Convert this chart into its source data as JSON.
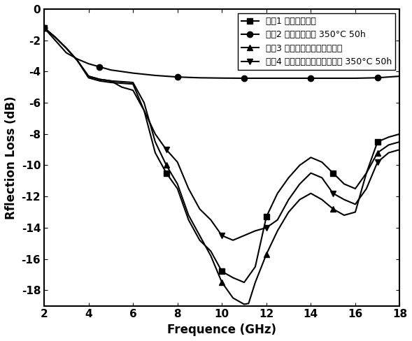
{
  "title": "",
  "xlabel": "Frequence (GHz)",
  "ylabel": "Rflection Loss (dB)",
  "xlim": [
    2,
    18
  ],
  "ylim": [
    -19,
    0
  ],
  "xticks": [
    2,
    4,
    6,
    8,
    10,
    12,
    14,
    16,
    18
  ],
  "yticks": [
    0,
    -2,
    -4,
    -6,
    -8,
    -10,
    -12,
    -14,
    -16,
    -18
  ],
  "legend_labels": [
    "试朷1 罰基铁粉涂层",
    "试朷2 罰基铁粉涂层 350°C 50h",
    "试朷3 氧化铝包覆罰基铁粉涂层",
    "试朷4 氧化铝包覆罰基铁粉涂层 350°C 50h"
  ],
  "series1_x": [
    2,
    2.5,
    3,
    3.5,
    4,
    4.5,
    5,
    5.5,
    6,
    6.5,
    7,
    7.5,
    8,
    8.5,
    9,
    9.5,
    10,
    10.5,
    11,
    11.5,
    12,
    12.5,
    13,
    13.5,
    14,
    14.5,
    15,
    15.5,
    16,
    16.5,
    17,
    17.5,
    18
  ],
  "series1_y": [
    -1.2,
    -1.8,
    -2.5,
    -3.3,
    -4.4,
    -4.6,
    -4.7,
    -4.75,
    -4.8,
    -6.5,
    -9.2,
    -10.5,
    -11.5,
    -13.5,
    -14.8,
    -15.5,
    -16.8,
    -17.2,
    -17.5,
    -16.5,
    -13.3,
    -11.8,
    -10.8,
    -10.0,
    -9.5,
    -9.8,
    -10.5,
    -11.2,
    -11.5,
    -10.5,
    -8.5,
    -8.2,
    -8.0
  ],
  "series2_x": [
    2,
    2.5,
    3,
    3.5,
    4,
    4.5,
    5,
    6,
    7,
    8,
    9,
    10,
    11,
    12,
    13,
    14,
    15,
    16,
    17,
    18
  ],
  "series2_y": [
    -1.2,
    -2.0,
    -2.8,
    -3.2,
    -3.5,
    -3.7,
    -3.9,
    -4.1,
    -4.25,
    -4.35,
    -4.4,
    -4.42,
    -4.43,
    -4.43,
    -4.43,
    -4.43,
    -4.43,
    -4.43,
    -4.4,
    -4.3
  ],
  "series3_x": [
    2,
    2.5,
    3,
    3.5,
    4,
    4.5,
    5,
    5.5,
    6,
    6.5,
    7,
    7.5,
    8,
    8.5,
    9,
    9.5,
    10,
    10.5,
    11,
    11.2,
    11.5,
    12,
    12.5,
    13,
    13.5,
    14,
    14.5,
    15,
    15.5,
    16,
    16.5,
    17,
    17.5,
    18
  ],
  "series3_y": [
    -1.2,
    -1.8,
    -2.5,
    -3.3,
    -4.3,
    -4.5,
    -4.6,
    -4.65,
    -4.7,
    -6.0,
    -8.5,
    -10.0,
    -11.2,
    -13.2,
    -14.5,
    -15.8,
    -17.5,
    -18.5,
    -18.9,
    -18.85,
    -17.5,
    -15.7,
    -14.2,
    -13.0,
    -12.2,
    -11.8,
    -12.2,
    -12.8,
    -13.2,
    -13.0,
    -10.5,
    -9.2,
    -8.7,
    -8.5
  ],
  "series4_x": [
    2,
    2.5,
    3,
    3.5,
    4,
    4.5,
    5,
    5.5,
    6,
    6.5,
    7,
    7.5,
    8,
    8.5,
    9,
    9.5,
    10,
    10.5,
    11,
    11.5,
    12,
    12.5,
    13,
    13.5,
    14,
    14.5,
    15,
    15.5,
    16,
    16.5,
    17,
    17.5,
    18
  ],
  "series4_y": [
    -1.2,
    -1.8,
    -2.5,
    -3.3,
    -4.3,
    -4.5,
    -4.6,
    -5.0,
    -5.2,
    -6.5,
    -8.0,
    -9.0,
    -9.8,
    -11.5,
    -12.8,
    -13.5,
    -14.5,
    -14.8,
    -14.5,
    -14.2,
    -14.0,
    -13.5,
    -12.2,
    -11.2,
    -10.5,
    -10.8,
    -11.8,
    -12.2,
    -12.5,
    -11.5,
    -9.8,
    -9.2,
    -9.0
  ],
  "marker1": "s",
  "marker2": "o",
  "marker3": "^",
  "marker4": "v",
  "marker_size": 6,
  "line_width": 1.5,
  "marker_positions1": [
    2,
    7.5,
    10,
    12,
    15,
    17
  ],
  "marker_positions2": [
    2,
    4.5,
    8,
    11,
    14,
    17
  ],
  "marker_positions3": [
    2,
    7.5,
    10,
    12,
    15,
    17
  ],
  "marker_positions4": [
    2,
    7.5,
    10,
    12,
    15,
    17
  ],
  "bg_color": "#ffffff",
  "line_color": "#000000",
  "font_size_label": 12,
  "font_size_tick": 11,
  "font_size_legend": 9
}
